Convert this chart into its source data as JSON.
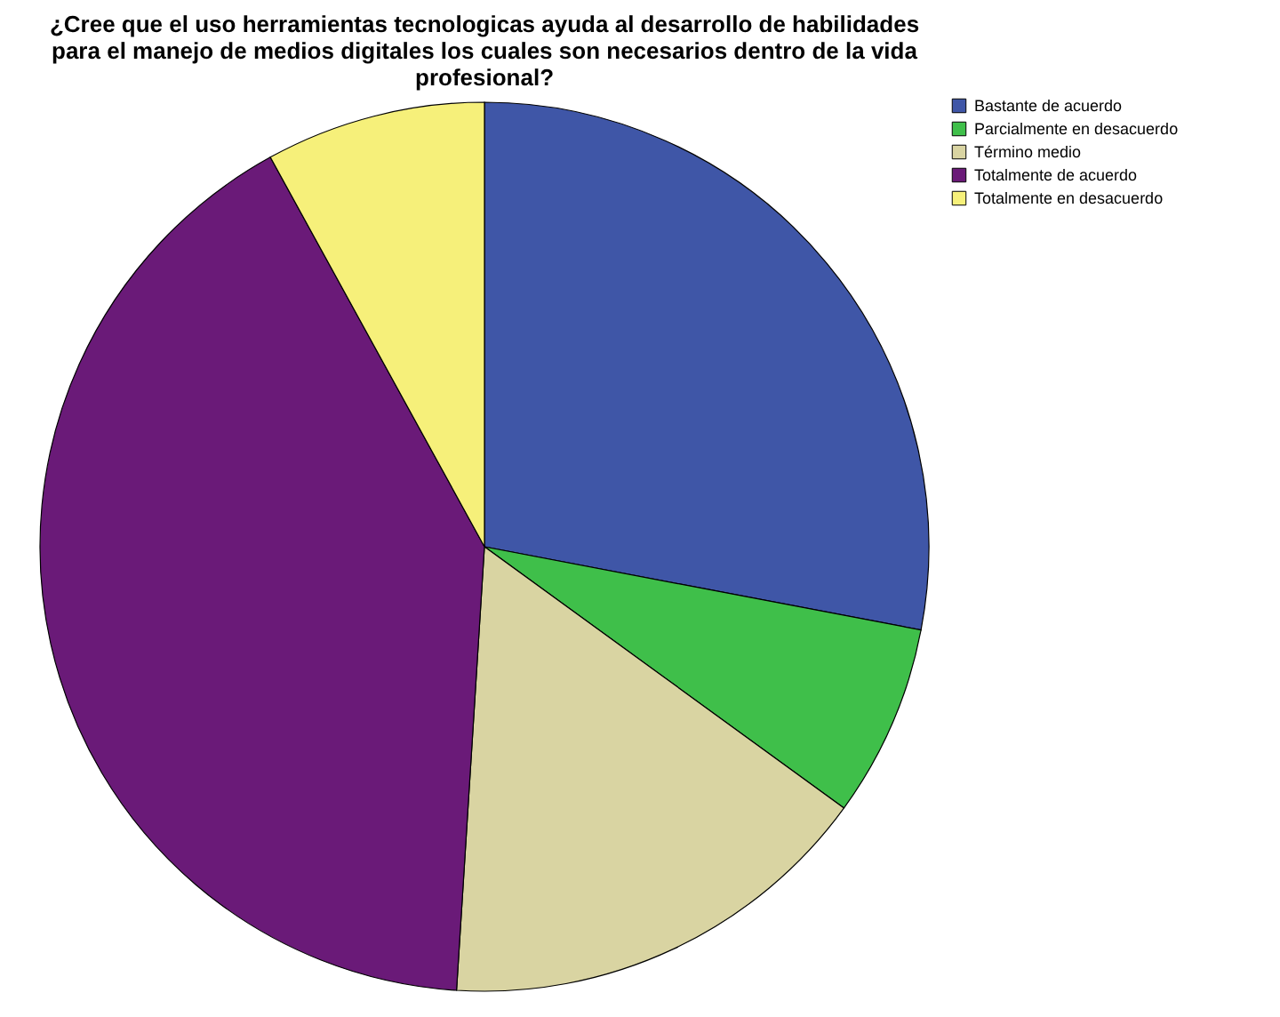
{
  "chart_data": {
    "type": "pie",
    "title": "¿Cree que el uso herramientas tecnologicas ayuda al desarrollo de habilidades para el manejo de medios digitales los cuales son necesarios dentro de la vida profesional?",
    "categories": [
      "Bastante de acuerdo",
      "Parcialmente en desacuerdo",
      "Término medio",
      "Totalmente de acuerdo",
      "Totalmente en desacuerdo"
    ],
    "values": [
      28,
      7,
      16,
      41,
      8
    ],
    "colors": [
      "#3f56a7",
      "#3fbf4a",
      "#d9d4a2",
      "#6a1a78",
      "#f6f07a"
    ],
    "legend": "top right"
  }
}
